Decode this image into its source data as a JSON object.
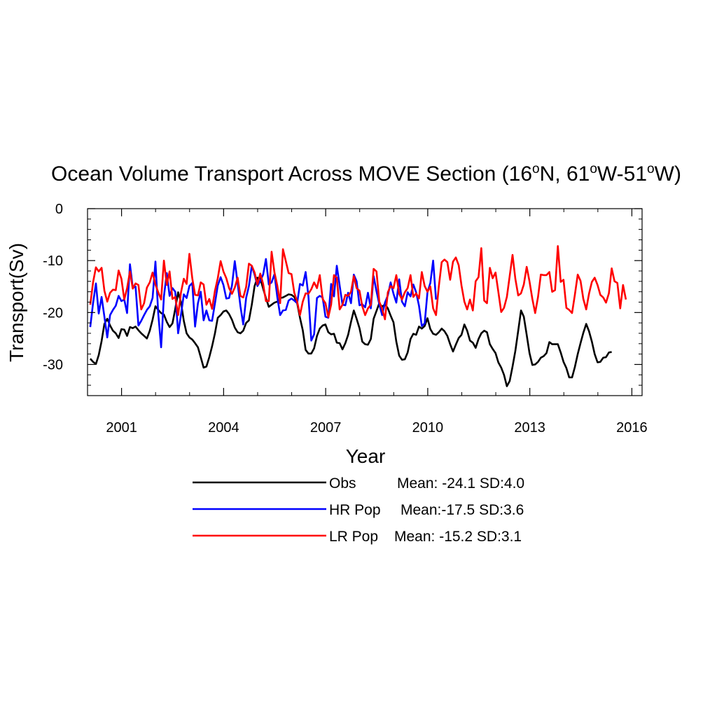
{
  "chart_data": {
    "type": "line",
    "title": {
      "prefix": "Ocean Volume Transport Across MOVE Section (16",
      "sup1": "o",
      "mid1": "N, 61",
      "sup2": "o",
      "mid2": "W-51",
      "sup3": "o",
      "suffix": "W)"
    },
    "xlabel": "Year",
    "ylabel": "Transport(Sv)",
    "xlim": [
      2000.0,
      2016.3
    ],
    "ylim": [
      -36,
      0
    ],
    "x_ticks": [
      "2001",
      "2004",
      "2007",
      "2010",
      "2013",
      "2016"
    ],
    "y_ticks": [
      "0",
      "-10",
      "-20",
      "-30"
    ],
    "x_start": 2000.08,
    "x_step": 0.0833,
    "grid": false,
    "legend_position": "below",
    "series": [
      {
        "name": "Obs",
        "stats": "Mean: -24.1 SD:4.0",
        "color": "#000000",
        "values": [
          -28.9,
          -29.5,
          -29.9,
          -28.2,
          -25.5,
          -22.2,
          -21.2,
          -22.5,
          -23.5,
          -24.0,
          -24.9,
          -23.2,
          -23.3,
          -24.5,
          -22.8,
          -23.0,
          -22.7,
          -23.4,
          -24.0,
          -24.5,
          -25.0,
          -23.5,
          -21.4,
          -18.8,
          -19.5,
          -20.1,
          -20.4,
          -21.8,
          -22.8,
          -22.1,
          -19.3,
          -16.1,
          -18.0,
          -21.6,
          -24.0,
          -24.8,
          -25.2,
          -25.9,
          -26.7,
          -28.6,
          -30.6,
          -30.4,
          -28.6,
          -26.5,
          -24.0,
          -21.0,
          -20.5,
          -19.8,
          -19.6,
          -20.3,
          -21.4,
          -22.9,
          -23.8,
          -24.0,
          -23.5,
          -22.0,
          -21.5,
          -18.5,
          -14.9,
          -13.3,
          -13.4,
          -15.4,
          -17.2,
          -18.9,
          -18.5,
          -18.1,
          -17.9,
          -17.2,
          -17.1,
          -16.8,
          -16.5,
          -16.6,
          -17.0,
          -18.2,
          -21.0,
          -23.4,
          -27.2,
          -27.9,
          -27.9,
          -26.9,
          -24.5,
          -23.1,
          -22.5,
          -22.3,
          -23.8,
          -24.2,
          -24.1,
          -25.8,
          -25.9,
          -27.1,
          -25.9,
          -24.3,
          -21.8,
          -19.6,
          -21.2,
          -23.0,
          -25.6,
          -26.1,
          -26.2,
          -25.1,
          -21.2,
          -19.7,
          -18.2,
          -18.9,
          -18.4,
          -19.2,
          -20.6,
          -21.9,
          -25.6,
          -28.3,
          -29.1,
          -29.0,
          -27.7,
          -25.1,
          -24.1,
          -24.3,
          -22.7,
          -23.1,
          -22.6,
          -21.1,
          -23.2,
          -24.1,
          -24.3,
          -23.8,
          -23.1,
          -23.6,
          -24.5,
          -26.1,
          -27.5,
          -26.2,
          -24.9,
          -24.3,
          -22.3,
          -23.5,
          -25.4,
          -25.8,
          -26.8,
          -25.1,
          -24.0,
          -23.5,
          -23.8,
          -26.1,
          -27.0,
          -27.8,
          -29.6,
          -30.6,
          -32.0,
          -34.2,
          -33.2,
          -30.4,
          -27.4,
          -23.5,
          -19.6,
          -20.8,
          -24.3,
          -27.8,
          -30.1,
          -30.0,
          -29.5,
          -28.7,
          -28.4,
          -27.8,
          -25.7,
          -26.1,
          -26.1,
          -26.1,
          -27.7,
          -29.5,
          -30.7,
          -32.5,
          -32.5,
          -30.5,
          -28.0,
          -25.9,
          -23.9,
          -22.2,
          -23.6,
          -25.6,
          -28.0,
          -29.6,
          -29.5,
          -28.7,
          -28.6,
          -27.7,
          -27.6
        ]
      },
      {
        "name": "HR Pop",
        "stats": "Mean:-17.5 SD:3.6",
        "color": "#0000ff",
        "values": [
          -22.8,
          -18.2,
          -14.4,
          -20.2,
          -17.0,
          -20.8,
          -24.8,
          -20.5,
          -19.5,
          -18.7,
          -16.8,
          -17.8,
          -17.5,
          -20.1,
          -10.7,
          -15.2,
          -15.0,
          -22.5,
          -21.6,
          -20.5,
          -19.5,
          -18.8,
          -17.2,
          -10.2,
          -20.2,
          -26.7,
          -16.9,
          -12.4,
          -16.8,
          -15.3,
          -16.0,
          -24.0,
          -20.5,
          -16.5,
          -17.2,
          -14.9,
          -14.3,
          -22.7,
          -18.2,
          -16.0,
          -21.5,
          -19.6,
          -21.5,
          -21.6,
          -18.2,
          -14.8,
          -13.2,
          -14.7,
          -17.3,
          -17.2,
          -14.8,
          -10.1,
          -14.4,
          -18.8,
          -22.3,
          -17.2,
          -14.9,
          -11.0,
          -12.7,
          -14.9,
          -13.9,
          -12.7,
          -9.7,
          -14.6,
          -14.2,
          -12.6,
          -17.0,
          -20.5,
          -19.6,
          -19.5,
          -17.7,
          -17.3,
          -17.7,
          -18.2,
          -14.5,
          -14.8,
          -12.2,
          -16.9,
          -25.4,
          -24.2,
          -17.2,
          -16.8,
          -17.1,
          -20.8,
          -21.0,
          -14.5,
          -16.9,
          -11.0,
          -14.8,
          -18.5,
          -18.6,
          -16.2,
          -18.2,
          -12.7,
          -14.0,
          -18.6,
          -18.4,
          -19.0,
          -16.2,
          -19.2,
          -13.0,
          -15.9,
          -18.4,
          -20.5,
          -18.1,
          -16.7,
          -14.2,
          -16.4,
          -18.1,
          -13.6,
          -17.9,
          -18.8,
          -16.1,
          -16.9,
          -14.6,
          -16.1,
          -18.7,
          -22.6,
          -22.1,
          -16.1,
          -14.3,
          -10.0,
          -17.5
        ]
      },
      {
        "name": "LR Pop",
        "stats": "Mean: -15.2 SD:3.1",
        "color": "#ff0000",
        "values": [
          -18.5,
          -14.2,
          -11.3,
          -12.1,
          -11.4,
          -15.8,
          -17.9,
          -16.2,
          -15.6,
          -15.7,
          -11.9,
          -13.5,
          -17.5,
          -15.3,
          -12.1,
          -15.4,
          -14.4,
          -14.7,
          -19.4,
          -18.2,
          -15.2,
          -14.2,
          -12.3,
          -14.6,
          -16.1,
          -17.5,
          -10.0,
          -14.7,
          -12.1,
          -17.4,
          -17.0,
          -20.5,
          -16.2,
          -13.5,
          -14.5,
          -8.7,
          -13.4,
          -16.6,
          -16.7,
          -14.2,
          -14.6,
          -18.5,
          -17.4,
          -19.3,
          -15.8,
          -13.4,
          -10.1,
          -12.1,
          -13.4,
          -15.3,
          -16.4,
          -15.2,
          -13.3,
          -16.8,
          -17.1,
          -15.1,
          -10.6,
          -11.0,
          -12.3,
          -14.6,
          -12.5,
          -14.5,
          -17.8,
          -17.8,
          -8.3,
          -12.3,
          -14.8,
          -18.2,
          -7.8,
          -10.1,
          -12.4,
          -12.6,
          -16.2,
          -17.9,
          -20.5,
          -17.9,
          -16.3,
          -16.4,
          -15.5,
          -14.2,
          -15.3,
          -12.8,
          -17.4,
          -18.2,
          -20.9,
          -18.5,
          -12.8,
          -13.3,
          -19.4,
          -18.5,
          -16.6,
          -16.8,
          -16.0,
          -13.0,
          -15.3,
          -15.8,
          -18.8,
          -20.5,
          -19.2,
          -18.5,
          -11.6,
          -12.1,
          -17.9,
          -19.3,
          -21.3,
          -16.1,
          -14.9,
          -15.3,
          -12.8,
          -16.4,
          -17.5,
          -16.1,
          -15.3,
          -12.8,
          -17.0,
          -16.3,
          -17.3,
          -12.2,
          -14.9,
          -16.0,
          -15.0,
          -19.2,
          -20.5,
          -15.0,
          -10.3,
          -9.8,
          -10.3,
          -13.7,
          -10.2,
          -9.4,
          -10.9,
          -14.8,
          -17.9,
          -19.4,
          -17.5,
          -19.6,
          -14.0,
          -13.2,
          -7.6,
          -17.7,
          -18.2,
          -11.4,
          -13.4,
          -12.3,
          -16.0,
          -19.9,
          -19.1,
          -17.0,
          -13.0,
          -8.9,
          -13.5,
          -16.7,
          -16.3,
          -14.6,
          -11.2,
          -14.0,
          -17.4,
          -20.1,
          -17.0,
          -12.7,
          -12.8,
          -12.8,
          -12.2,
          -16.0,
          -15.7,
          -7.2,
          -14.1,
          -13.7,
          -19.1,
          -19.5,
          -20.1,
          -16.6,
          -12.7,
          -13.9,
          -17.4,
          -19.4,
          -16.4,
          -14.1,
          -13.3,
          -14.7,
          -16.6,
          -17.1,
          -18.1,
          -16.3,
          -11.5,
          -14.0,
          -14.3,
          -19.2,
          -14.7,
          -17.5
        ]
      }
    ]
  }
}
